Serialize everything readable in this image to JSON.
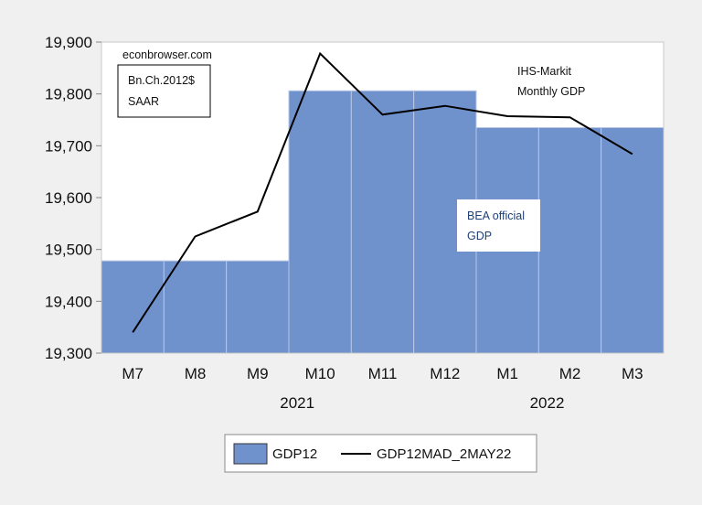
{
  "chart_data": {
    "type": "bar",
    "categories": [
      "M7",
      "M8",
      "M9",
      "M10",
      "M11",
      "M12",
      "M1",
      "M2",
      "M3"
    ],
    "year_labels": [
      {
        "label": "2021",
        "under": "M10"
      },
      {
        "label": "2022",
        "under": "M2"
      }
    ],
    "series": [
      {
        "name": "GDP12",
        "type": "bar",
        "color": "#7092cc",
        "values": [
          19478,
          19478,
          19478,
          19806,
          19806,
          19806,
          19735,
          19735,
          19735
        ]
      },
      {
        "name": "GDP12MAD_2MAY22",
        "type": "line",
        "color": "#000000",
        "values": [
          19340,
          19525,
          19573,
          19878,
          19760,
          19777,
          19757,
          19755,
          19684
        ]
      }
    ],
    "ylim": [
      19300,
      19900
    ],
    "yticks": [
      19300,
      19400,
      19500,
      19600,
      19700,
      19800,
      19900
    ],
    "ytick_labels": [
      "19,300",
      "19,400",
      "19,500",
      "19,600",
      "19,700",
      "19,800",
      "19,900"
    ],
    "annotations": {
      "source": "econbrowser.com",
      "units_line1": "Bn.Ch.2012$",
      "units_line2": "SAAR",
      "ihs_line1": "IHS-Markit",
      "ihs_line2": "Monthly GDP",
      "bea_line1": "BEA official",
      "bea_line2": "GDP"
    },
    "legend": {
      "position": "bottom",
      "bar_label": "GDP12",
      "line_label": "GDP12MAD_2MAY22"
    },
    "background_color": "#f0f0f0",
    "plot_color": "#ffffff"
  }
}
